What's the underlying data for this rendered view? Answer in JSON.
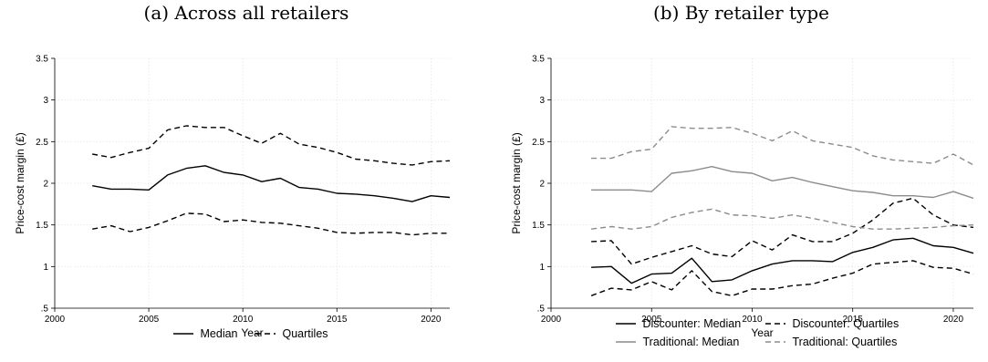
{
  "chart_data": [
    {
      "type": "line",
      "title": "(a) Across all retailers",
      "xlabel": "Year",
      "ylabel": "Price-cost margin (£)",
      "xlim": [
        2000,
        2021
      ],
      "ylim": [
        0.5,
        3.5
      ],
      "xticks": [
        2000,
        2005,
        2010,
        2015,
        2020
      ],
      "xtick_labels": [
        "2000",
        "2005",
        "2010",
        "2015",
        "2020"
      ],
      "yticks": [
        0.5,
        1,
        1.5,
        2,
        2.5,
        3,
        3.5
      ],
      "ytick_labels": [
        ".5",
        "1",
        "1.5",
        "2",
        "2.5",
        "3",
        "3.5"
      ],
      "grid": true,
      "legend_position": "bottom",
      "legend": [
        {
          "label": "Median",
          "color": "#000000",
          "dash": "solid"
        },
        {
          "label": "Quartiles",
          "color": "#000000",
          "dash": "dashed"
        }
      ],
      "x": [
        2002,
        2003,
        2004,
        2005,
        2006,
        2007,
        2008,
        2009,
        2010,
        2011,
        2012,
        2013,
        2014,
        2015,
        2016,
        2017,
        2018,
        2019,
        2020,
        2021
      ],
      "series": [
        {
          "legend": 0,
          "color": "#000000",
          "dash": "solid",
          "values": [
            1.97,
            1.93,
            1.93,
            1.92,
            2.1,
            2.18,
            2.21,
            2.13,
            2.1,
            2.02,
            2.06,
            1.95,
            1.93,
            1.88,
            1.87,
            1.85,
            1.82,
            1.78,
            1.85,
            1.83
          ]
        },
        {
          "legend": 1,
          "color": "#000000",
          "dash": "dashed",
          "values": [
            2.35,
            2.31,
            2.37,
            2.42,
            2.64,
            2.69,
            2.67,
            2.67,
            2.57,
            2.48,
            2.6,
            2.47,
            2.43,
            2.37,
            2.29,
            2.27,
            2.24,
            2.22,
            2.26,
            2.27
          ]
        },
        {
          "legend": 1,
          "color": "#000000",
          "dash": "dashed",
          "values": [
            1.45,
            1.49,
            1.42,
            1.47,
            1.55,
            1.64,
            1.63,
            1.54,
            1.56,
            1.53,
            1.52,
            1.49,
            1.46,
            1.41,
            1.4,
            1.41,
            1.41,
            1.38,
            1.4,
            1.4
          ]
        }
      ]
    },
    {
      "type": "line",
      "title": "(b) By retailer type",
      "xlabel": "Year",
      "ylabel": "Price-cost margin (£)",
      "xlim": [
        2000,
        2021
      ],
      "ylim": [
        0.5,
        3.5
      ],
      "xticks": [
        2000,
        2005,
        2010,
        2015,
        2020
      ],
      "xtick_labels": [
        "2000",
        "2005",
        "2010",
        "2015",
        "2020"
      ],
      "yticks": [
        0.5,
        1,
        1.5,
        2,
        2.5,
        3,
        3.5
      ],
      "ytick_labels": [
        ".5",
        "1",
        "1.5",
        "2",
        "2.5",
        "3",
        "3.5"
      ],
      "grid": true,
      "legend_position": "bottom",
      "legend": [
        {
          "label": "Discounter: Median",
          "color": "#000000",
          "dash": "solid"
        },
        {
          "label": "Discounter: Quartiles",
          "color": "#000000",
          "dash": "dashed"
        },
        {
          "label": "Traditional: Median",
          "color": "#8c8c8c",
          "dash": "solid"
        },
        {
          "label": "Traditional: Quartiles",
          "color": "#8c8c8c",
          "dash": "dashed"
        }
      ],
      "x": [
        2002,
        2003,
        2004,
        2005,
        2006,
        2007,
        2008,
        2009,
        2010,
        2011,
        2012,
        2013,
        2014,
        2015,
        2016,
        2017,
        2018,
        2019,
        2020,
        2021
      ],
      "series": [
        {
          "legend": 0,
          "color": "#000000",
          "dash": "solid",
          "values": [
            0.99,
            1.0,
            0.8,
            0.91,
            0.92,
            1.1,
            0.82,
            0.84,
            0.95,
            1.03,
            1.07,
            1.07,
            1.06,
            1.17,
            1.23,
            1.32,
            1.34,
            1.25,
            1.23,
            1.16
          ]
        },
        {
          "legend": 1,
          "color": "#000000",
          "dash": "dashed",
          "values": [
            1.3,
            1.31,
            1.03,
            1.11,
            1.18,
            1.25,
            1.15,
            1.12,
            1.31,
            1.2,
            1.38,
            1.3,
            1.3,
            1.4,
            1.56,
            1.76,
            1.82,
            1.62,
            1.5,
            1.47
          ]
        },
        {
          "legend": 1,
          "color": "#000000",
          "dash": "dashed",
          "values": [
            0.65,
            0.74,
            0.72,
            0.82,
            0.72,
            0.95,
            0.7,
            0.65,
            0.73,
            0.73,
            0.77,
            0.79,
            0.86,
            0.92,
            1.03,
            1.05,
            1.07,
            0.99,
            0.98,
            0.91
          ]
        },
        {
          "legend": 2,
          "color": "#8c8c8c",
          "dash": "solid",
          "values": [
            1.92,
            1.92,
            1.92,
            1.9,
            2.12,
            2.15,
            2.2,
            2.14,
            2.12,
            2.03,
            2.07,
            2.01,
            1.96,
            1.91,
            1.89,
            1.85,
            1.85,
            1.83,
            1.9,
            1.82
          ]
        },
        {
          "legend": 3,
          "color": "#8c8c8c",
          "dash": "dashed",
          "values": [
            2.3,
            2.3,
            2.38,
            2.41,
            2.68,
            2.66,
            2.66,
            2.67,
            2.6,
            2.51,
            2.63,
            2.51,
            2.47,
            2.43,
            2.33,
            2.28,
            2.26,
            2.24,
            2.35,
            2.22
          ]
        },
        {
          "legend": 3,
          "color": "#8c8c8c",
          "dash": "dashed",
          "values": [
            1.45,
            1.48,
            1.45,
            1.48,
            1.59,
            1.65,
            1.69,
            1.62,
            1.61,
            1.58,
            1.62,
            1.58,
            1.53,
            1.48,
            1.45,
            1.45,
            1.46,
            1.47,
            1.49,
            1.5
          ]
        }
      ]
    }
  ]
}
